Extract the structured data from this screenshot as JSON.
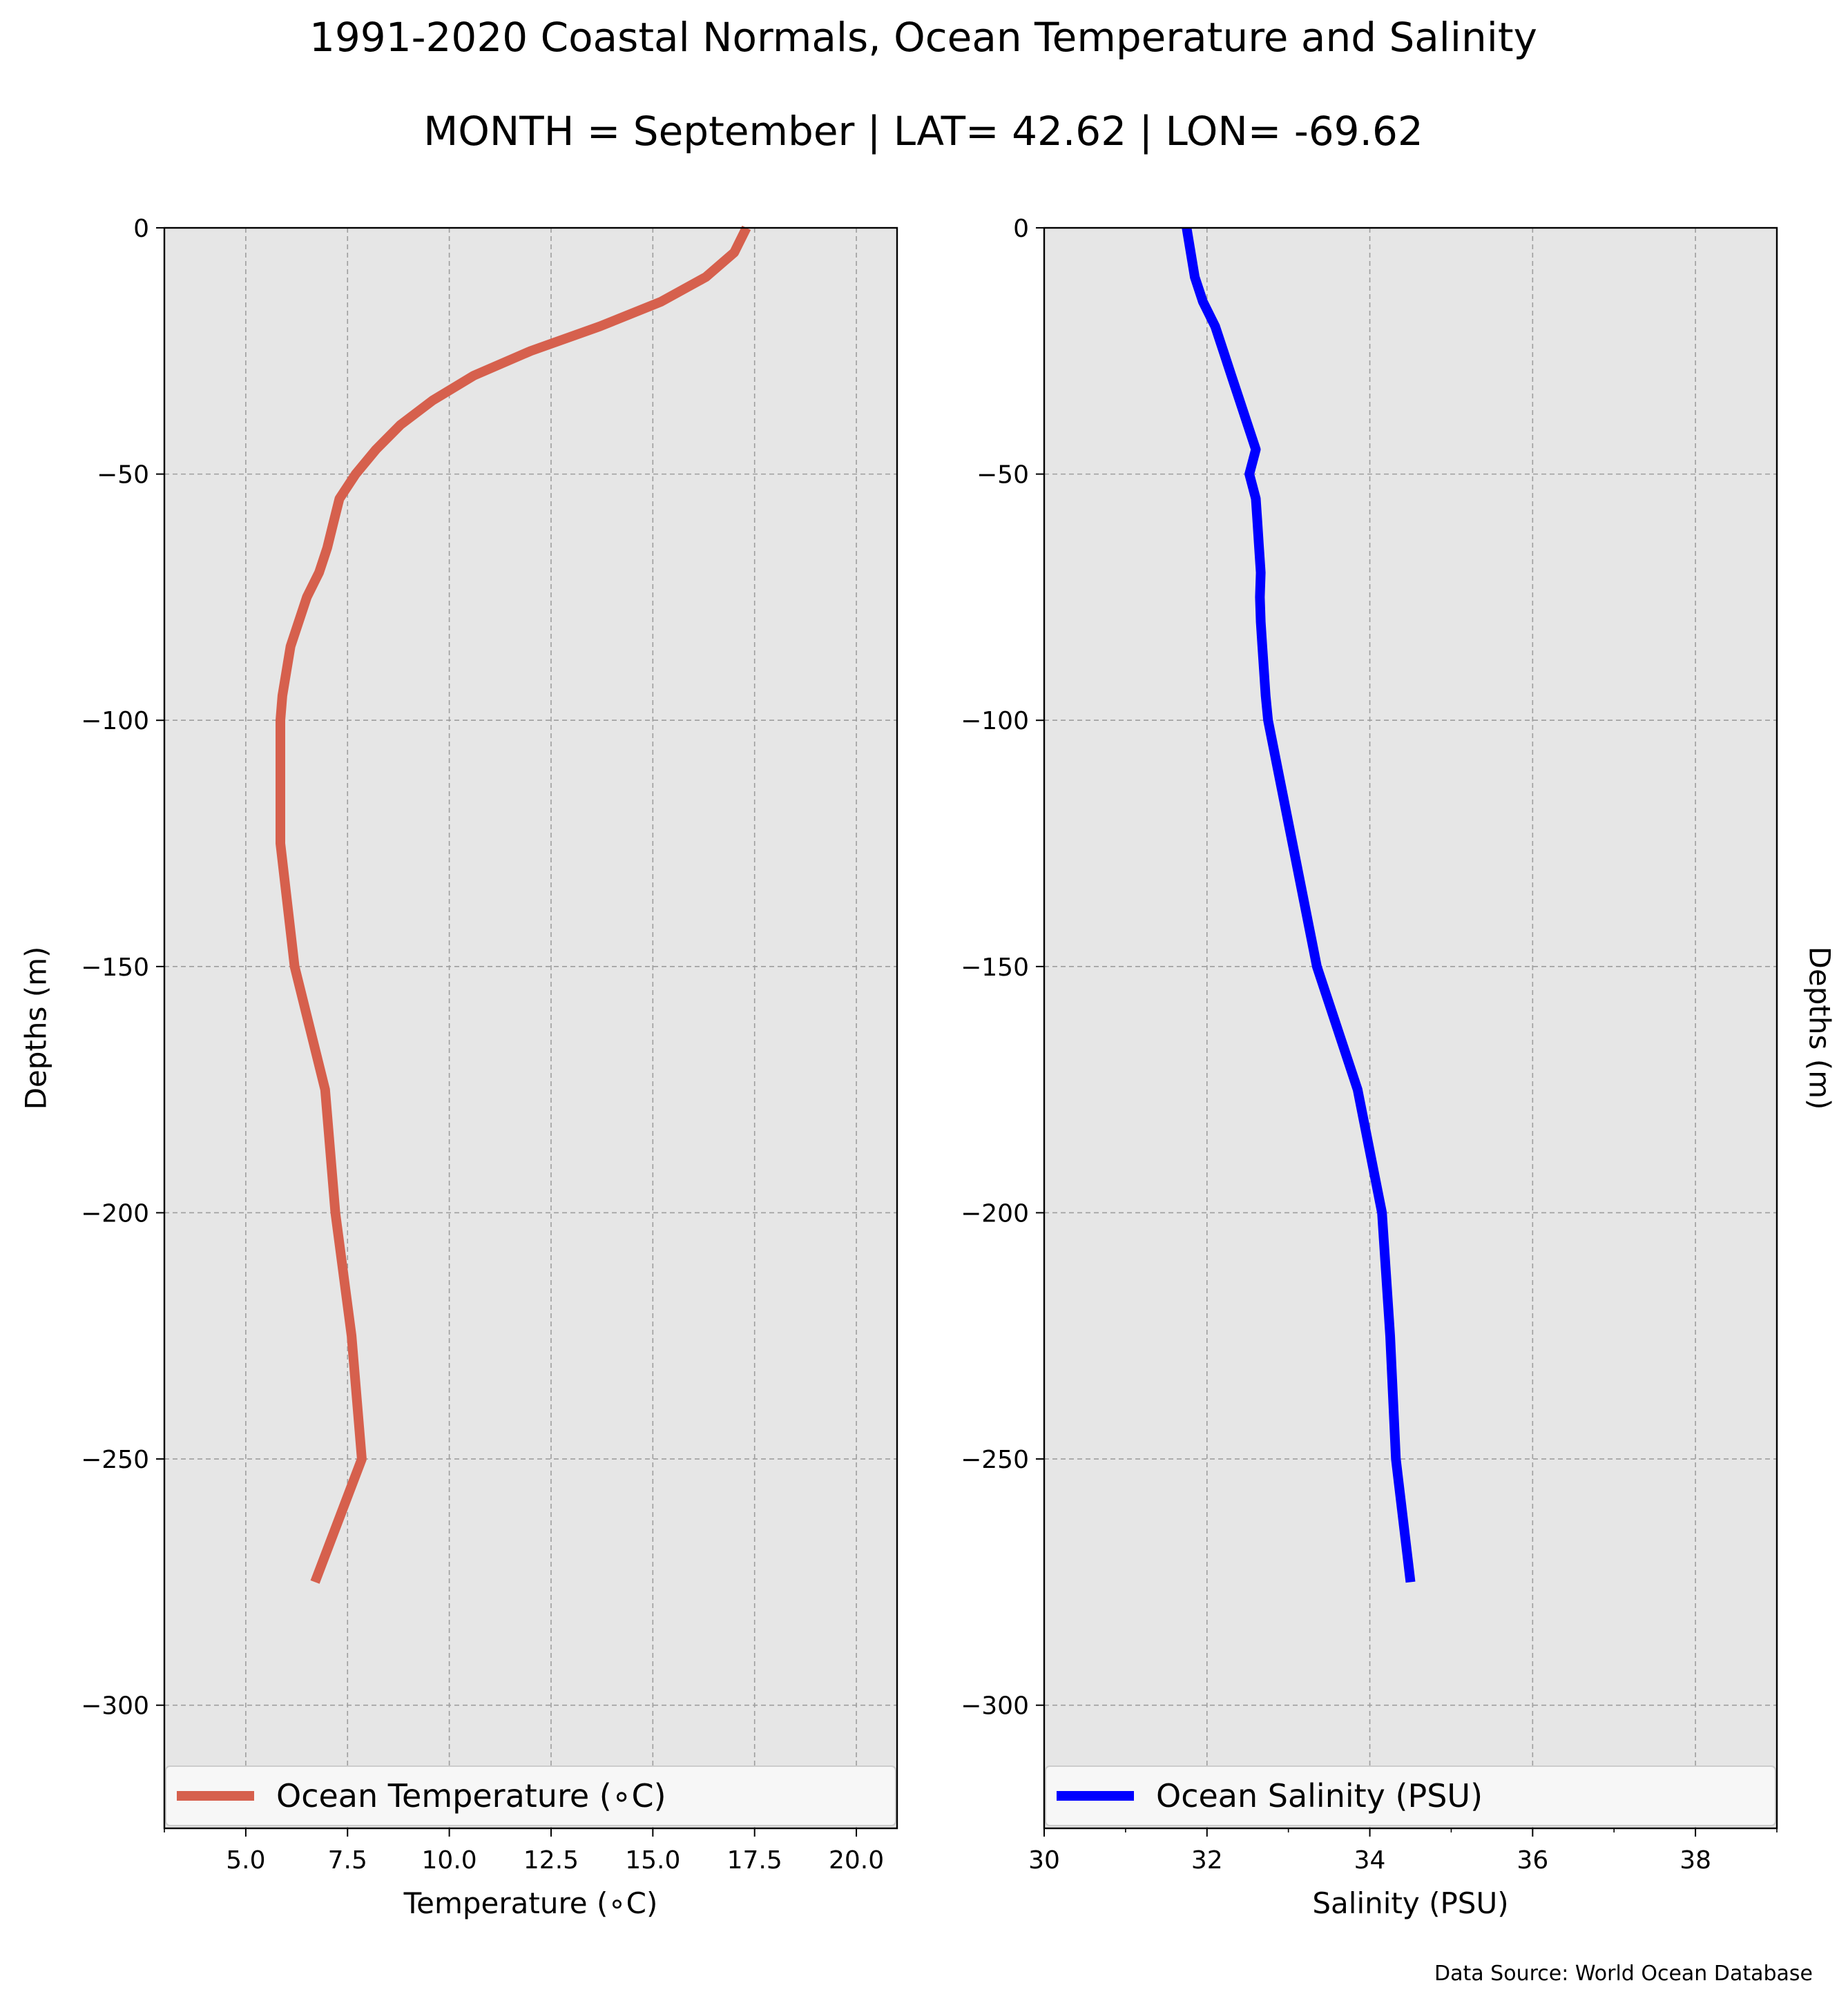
{
  "figure": {
    "title_line1": "1991-2020 Coastal Normals, Ocean Temperature and Salinity",
    "title_line2": "MONTH = September | LAT= 42.62 | LON= -69.62",
    "source": "Data Source: World Ocean Database"
  },
  "colors": {
    "background": "#ffffff",
    "plot_background": "#e6e6e6",
    "grid": "#9e9e9e",
    "temperature_line": "#d6604d",
    "salinity_line": "#0000ff",
    "legend_background": "#f7f7f7"
  },
  "chart_data": [
    {
      "type": "line",
      "xlabel": "Temperature (∘C)",
      "ylabel": "Depths (m)",
      "xlim": [
        3,
        21
      ],
      "ylim": [
        -325,
        0
      ],
      "grid": true,
      "legend": "bottom, full width",
      "x_ticks": [
        5.0,
        7.5,
        10.0,
        12.5,
        15.0,
        17.5,
        20.0
      ],
      "x_tick_labels": [
        "5.0",
        "7.5",
        "10.0",
        "12.5",
        "15.0",
        "17.5",
        "20.0"
      ],
      "x_minor_ticks": [
        3.0
      ],
      "y_ticks": [
        0,
        -50,
        -100,
        -150,
        -200,
        -250,
        -300
      ],
      "y_tick_labels": [
        "0",
        "−50",
        "−100",
        "−150",
        "−200",
        "−250",
        "−300"
      ],
      "series": [
        {
          "name": "Ocean Temperature (∘C)",
          "color": "#d6604d",
          "depth": [
            0,
            -5,
            -10,
            -15,
            -20,
            -25,
            -30,
            -35,
            -40,
            -45,
            -50,
            -55,
            -60,
            -65,
            -70,
            -75,
            -80,
            -85,
            -90,
            -95,
            -100,
            -125,
            -150,
            -175,
            -200,
            -225,
            -250,
            -275
          ],
          "values": [
            17.3,
            17.0,
            16.3,
            15.2,
            13.7,
            12.0,
            10.6,
            9.6,
            8.8,
            8.2,
            7.7,
            7.3,
            7.15,
            7.0,
            6.8,
            6.5,
            6.3,
            6.1,
            6.0,
            5.9,
            5.85,
            5.85,
            6.2,
            6.95,
            7.2,
            7.6,
            7.85,
            6.7
          ]
        }
      ]
    },
    {
      "type": "line",
      "xlabel": "Salinity (PSU)",
      "ylabel": "Depths (m)",
      "xlim": [
        30,
        39
      ],
      "ylim": [
        -325,
        0
      ],
      "grid": true,
      "legend": "bottom, full width",
      "x_ticks": [
        30,
        32,
        34,
        36,
        38
      ],
      "x_tick_labels": [
        "30",
        "32",
        "34",
        "36",
        "38"
      ],
      "x_minor_ticks": [
        31,
        33,
        35,
        37,
        39
      ],
      "y_ticks": [
        0,
        -50,
        -100,
        -150,
        -200,
        -250,
        -300
      ],
      "y_tick_labels": [
        "0",
        "−50",
        "−100",
        "−150",
        "−200",
        "−250",
        "−300"
      ],
      "series": [
        {
          "name": "Ocean Salinity (PSU)",
          "color": "#0000ff",
          "depth": [
            0,
            -5,
            -10,
            -15,
            -20,
            -25,
            -30,
            -35,
            -40,
            -45,
            -50,
            -55,
            -60,
            -65,
            -70,
            -75,
            -80,
            -85,
            -90,
            -95,
            -100,
            -125,
            -150,
            -175,
            -200,
            -225,
            -250,
            -275
          ],
          "values": [
            31.75,
            31.8,
            31.85,
            31.95,
            32.1,
            32.2,
            32.3,
            32.4,
            32.5,
            32.6,
            32.52,
            32.6,
            32.62,
            32.64,
            32.66,
            32.65,
            32.66,
            32.68,
            32.7,
            32.72,
            32.75,
            33.05,
            33.35,
            33.85,
            34.15,
            34.25,
            34.32,
            34.5
          ]
        }
      ]
    }
  ]
}
